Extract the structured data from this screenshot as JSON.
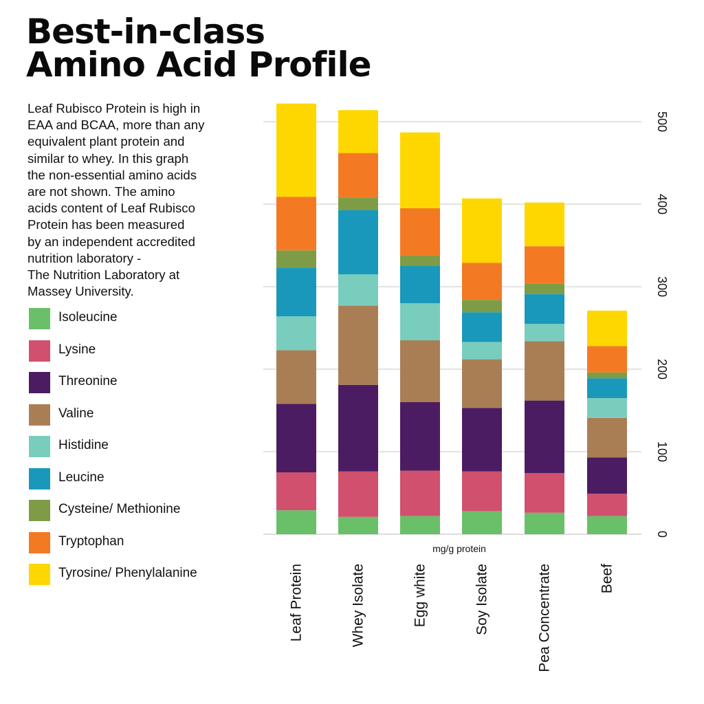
{
  "title_lines": [
    "Best-in-class",
    "Amino Acid Profile"
  ],
  "description_lines": [
    "Leaf Rubisco Protein is high in",
    "EAA and BCAA, more than any",
    "equivalent plant protein and",
    "similar to whey. In this graph",
    "the non-essential amino acids",
    "are not shown. The amino",
    "acids content of Leaf Rubisco",
    "Protein has been measured",
    "by an independent accredited",
    "nutrition laboratory -",
    "The Nutrition Laboratory at",
    "Massey University."
  ],
  "chart_data": {
    "type": "bar",
    "stacked": true,
    "title": "Best-in-class Amino Acid Profile",
    "xlabel": "mg/g protein",
    "ylabel": "",
    "ylim": [
      0,
      520
    ],
    "yticks": [
      0,
      100,
      200,
      300,
      400,
      500
    ],
    "grid": true,
    "categories": [
      "Leaf Protein",
      "Whey Isolate",
      "Egg white",
      "Soy Isolate",
      "Pea Concentrate",
      "Beef"
    ],
    "series": [
      {
        "name": "Isoleucine",
        "color": "#6ABF69",
        "values": [
          29,
          21,
          22,
          28,
          26,
          22
        ]
      },
      {
        "name": "Lysine",
        "color": "#D0506E",
        "values": [
          46,
          55,
          55,
          48,
          48,
          27
        ]
      },
      {
        "name": "Threonine",
        "color": "#4B1C61",
        "values": [
          83,
          105,
          83,
          77,
          88,
          44
        ]
      },
      {
        "name": "Valine",
        "color": "#AA7E55",
        "values": [
          65,
          96,
          75,
          59,
          72,
          48
        ]
      },
      {
        "name": "Histidine",
        "color": "#79CDBD",
        "values": [
          41,
          38,
          45,
          21,
          21,
          24
        ]
      },
      {
        "name": "Leucine",
        "color": "#1998BB",
        "values": [
          59,
          78,
          45,
          36,
          36,
          24
        ]
      },
      {
        "name": "Cysteine/ Methionine",
        "color": "#7E9C46",
        "values": [
          21,
          15,
          13,
          15,
          13,
          7
        ]
      },
      {
        "name": "Tryptophan",
        "color": "#F37A23",
        "values": [
          65,
          54,
          57,
          45,
          45,
          32
        ]
      },
      {
        "name": "Tyrosine/ Phenylalanine",
        "color": "#FFD700",
        "values": [
          113,
          52,
          92,
          78,
          53,
          43
        ]
      }
    ]
  }
}
